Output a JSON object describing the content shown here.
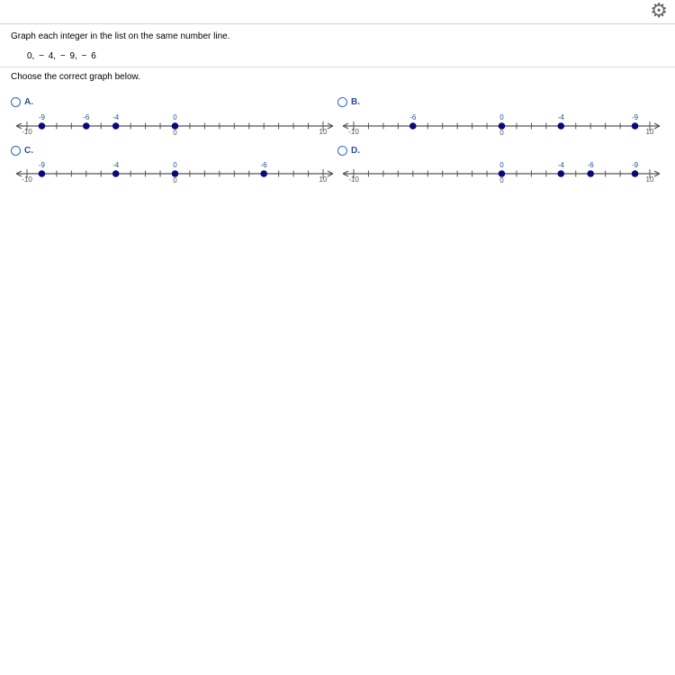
{
  "header": {
    "settings_icon": "gear-icon"
  },
  "question": {
    "prompt": "Graph each integer in the list on the same number line.",
    "list": "0,  − 4,  − 9,  − 6",
    "instruction": "Choose the correct graph below."
  },
  "colors": {
    "point": "#0a0a7a",
    "label": "#2b4c9b",
    "axis": "#555555"
  },
  "options": [
    {
      "label": "A.",
      "min": -10,
      "max": 10,
      "min_label": "-10",
      "max_label": "10",
      "zero_label": "0",
      "points": [
        {
          "pos": -9,
          "text": "-9"
        },
        {
          "pos": -6,
          "text": "-6"
        },
        {
          "pos": -4,
          "text": "-4"
        },
        {
          "pos": 0,
          "text": "0"
        }
      ]
    },
    {
      "label": "B.",
      "min": -10,
      "max": 10,
      "min_label": "-10",
      "max_label": "10",
      "zero_label": "0",
      "points": [
        {
          "pos": -6,
          "text": "-6"
        },
        {
          "pos": 0,
          "text": "0"
        },
        {
          "pos": 4,
          "text": "-4"
        },
        {
          "pos": 9,
          "text": "-9"
        }
      ]
    },
    {
      "label": "C.",
      "min": -10,
      "max": 10,
      "min_label": "-10",
      "max_label": "10",
      "zero_label": "0",
      "points": [
        {
          "pos": -9,
          "text": "-9"
        },
        {
          "pos": -4,
          "text": "-4"
        },
        {
          "pos": 0,
          "text": "0"
        },
        {
          "pos": 6,
          "text": "-6"
        }
      ]
    },
    {
      "label": "D.",
      "min": -10,
      "max": 10,
      "min_label": "-10",
      "max_label": "10",
      "zero_label": "0",
      "points": [
        {
          "pos": 0,
          "text": "0"
        },
        {
          "pos": 4,
          "text": "-4"
        },
        {
          "pos": 6,
          "text": "-6"
        },
        {
          "pos": 9,
          "text": "-9"
        }
      ]
    }
  ]
}
